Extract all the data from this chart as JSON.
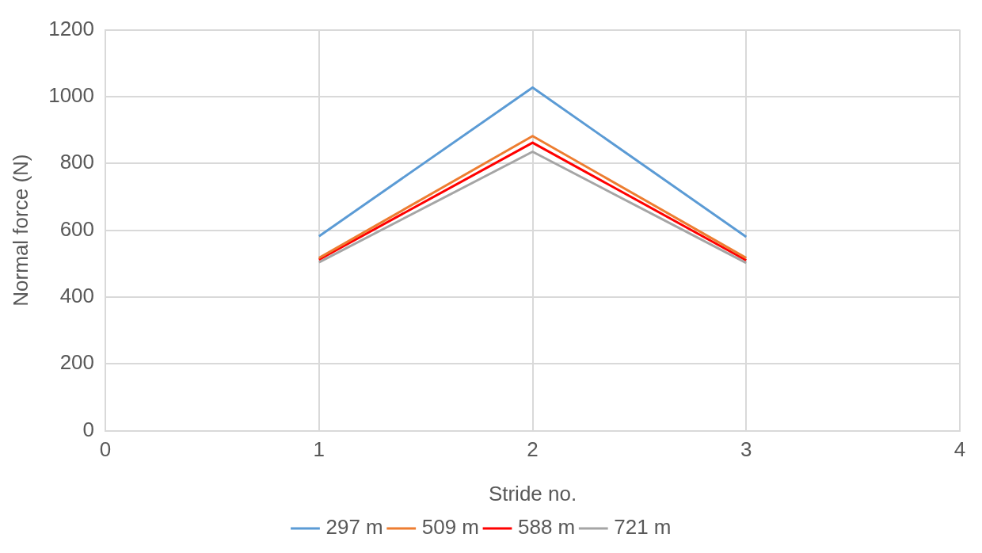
{
  "chart_data": {
    "type": "line",
    "xlabel": "Stride no.",
    "ylabel": "Normal force (N)",
    "x": [
      1,
      2,
      3
    ],
    "series": [
      {
        "name": "297 m",
        "color": "#5b9bd5",
        "values": [
          582,
          1027,
          580
        ]
      },
      {
        "name": "509 m",
        "color": "#ed7d31",
        "values": [
          517,
          882,
          517
        ]
      },
      {
        "name": "588 m",
        "color": "#ff0000",
        "values": [
          512,
          862,
          510
        ]
      },
      {
        "name": "721 m",
        "color": "#a5a5a5",
        "values": [
          504,
          835,
          502
        ]
      }
    ],
    "xlim": [
      0,
      4
    ],
    "xticks": [
      0,
      1,
      2,
      3,
      4
    ],
    "ylim": [
      0,
      1200
    ],
    "yticks": [
      0,
      200,
      400,
      600,
      800,
      1000,
      1200
    ],
    "grid": true,
    "legend": "bottom",
    "marker": "none",
    "line_style": "solid"
  }
}
